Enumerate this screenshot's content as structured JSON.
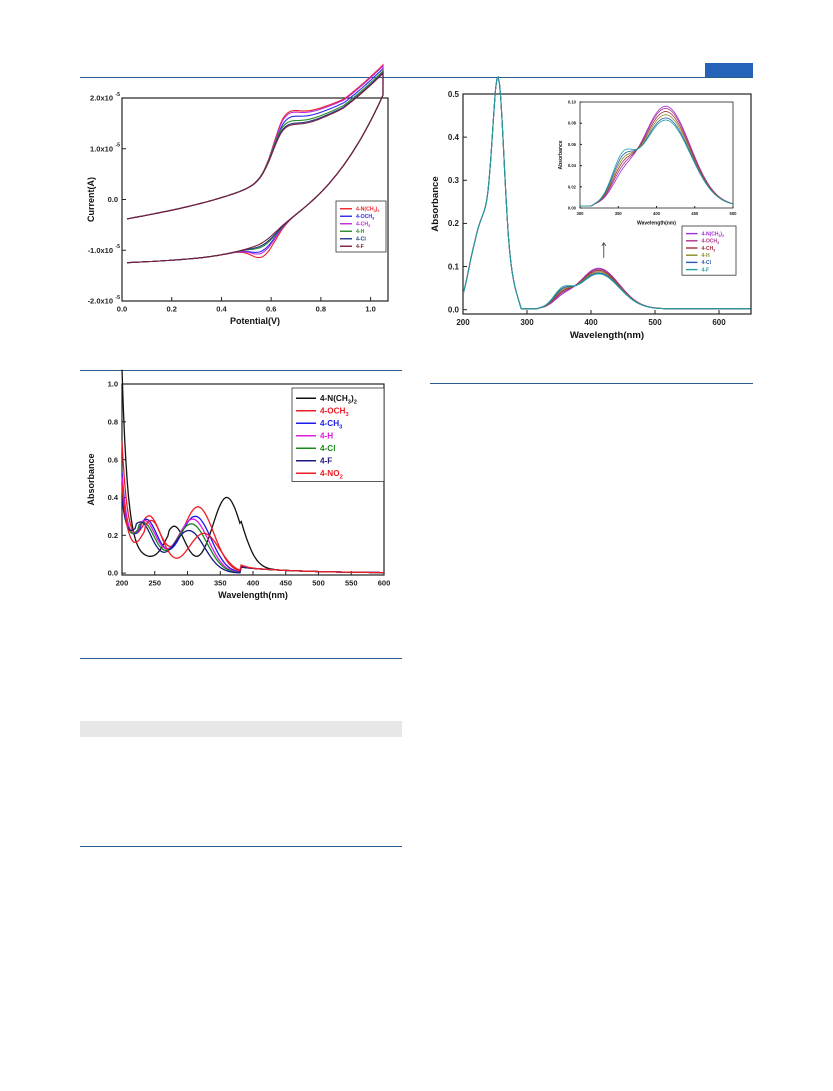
{
  "page": {
    "accent_color": "#2b5c8f",
    "tab_color": "#2563b8",
    "table_header_color": "#e7e7e7"
  },
  "chart_data": [
    {
      "id": "cv",
      "type": "line",
      "xlabel": "Potential(V)",
      "ylabel": "Current(A)",
      "xlim": [
        0.0,
        1.07
      ],
      "ylim": [
        -2e-05,
        2e-05
      ],
      "xticks": [
        0.0,
        0.2,
        0.4,
        0.6,
        0.8,
        1.0
      ],
      "xtick_labels": [
        "0.0",
        "0.2",
        "0.4",
        "0.6",
        "0.8",
        "1.0"
      ],
      "yticks": [
        -2e-05,
        -1e-05,
        0.0,
        1e-05,
        2e-05
      ],
      "ytick_labels": [
        "-2.0x10",
        "-1.0x10",
        "0.0",
        "1.0x10",
        "2.0x10"
      ],
      "ytick_exponents": [
        "-5",
        "-5",
        "",
        "-5",
        "-5"
      ],
      "legend_position": "lower-right",
      "series": [
        {
          "name": "4-N(CH3)2",
          "color": "#e8232b",
          "ipa": 1.8e-05,
          "ipc": -1.18e-05,
          "epa": 0.645,
          "epc": 0.57
        },
        {
          "name": "4-OCH3",
          "color": "#2a2af0",
          "ipa": 1.62e-05,
          "ipc": -1.06e-05,
          "epa": 0.645,
          "epc": 0.57
        },
        {
          "name": "4-CH3",
          "color": "#c02ad6",
          "ipa": 1.75e-05,
          "ipc": -1.1e-05,
          "epa": 0.645,
          "epc": 0.57
        },
        {
          "name": "4-H",
          "color": "#2a8a2a",
          "ipa": 1.5e-05,
          "ipc": -9.8e-06,
          "epa": 0.64,
          "epc": 0.575
        },
        {
          "name": "4-Cl",
          "color": "#1f3a8a",
          "ipa": 1.42e-05,
          "ipc": -9.5e-06,
          "epa": 0.64,
          "epc": 0.575
        },
        {
          "name": "4-F",
          "color": "#7a1f3a",
          "ipa": 1.38e-05,
          "ipc": -9e-06,
          "epa": 0.64,
          "epc": 0.575
        }
      ],
      "legend_labels": [
        "4-N(CH",
        ")",
        "4-OCH",
        "4-CH",
        "4-H",
        "4-Cl",
        "4-F"
      ],
      "legend_subscripts": [
        "3",
        "2",
        "3",
        "3"
      ]
    },
    {
      "id": "uv-main",
      "type": "line",
      "xlabel": "Wavelength(nm)",
      "ylabel": "Absorbance",
      "xlim": [
        200,
        650
      ],
      "ylim": [
        -0.01,
        0.5
      ],
      "xticks": [
        200,
        300,
        400,
        500,
        600
      ],
      "xtick_labels": [
        "200",
        "300",
        "400",
        "500",
        "600"
      ],
      "yticks": [
        0.0,
        0.1,
        0.2,
        0.3,
        0.4,
        0.5
      ],
      "ytick_labels": [
        "0.0",
        "0.1",
        "0.2",
        "0.3",
        "0.4",
        "0.5"
      ],
      "legend_position": "right",
      "series": [
        {
          "name": "4-N(CH3)2",
          "color": "#9b30d9",
          "peak_420": 0.094
        },
        {
          "name": "4-OCH3",
          "color": "#b0308a",
          "peak_420": 0.092
        },
        {
          "name": "4-CH3",
          "color": "#a02a3a",
          "peak_420": 0.089
        },
        {
          "name": "4-H",
          "color": "#8a8a20",
          "peak_420": 0.086
        },
        {
          "name": "4-Cl",
          "color": "#2a5ab0",
          "peak_420": 0.083
        },
        {
          "name": "4-F",
          "color": "#20a0a0",
          "peak_420": 0.081
        }
      ],
      "legend_labels": [
        "4-N(CH",
        ")",
        "4-OCH",
        "4-CH",
        "4-H",
        "4-Cl",
        "4-F"
      ],
      "legend_subscripts": [
        "3",
        "2",
        "3",
        "3"
      ]
    },
    {
      "id": "uv-inset",
      "type": "line",
      "xlabel": "Wavelength(nm)",
      "ylabel": "Absorbance",
      "xlim": [
        300,
        500
      ],
      "ylim": [
        0.0,
        0.1
      ],
      "xticks": [
        300,
        350,
        400,
        450,
        500
      ],
      "xtick_labels": [
        "300",
        "350",
        "400",
        "450",
        "500"
      ],
      "yticks": [
        0.0,
        0.02,
        0.04,
        0.06,
        0.08,
        0.1
      ],
      "ytick_labels": [
        "0.00",
        "0.02",
        "0.04",
        "0.06",
        "0.08",
        "0.10"
      ]
    },
    {
      "id": "uv-bottom",
      "type": "line",
      "xlabel": "Wavelength(nm)",
      "ylabel": "Absorbance",
      "xlim": [
        200,
        600
      ],
      "ylim": [
        -0.01,
        1.0
      ],
      "xticks": [
        200,
        250,
        300,
        350,
        400,
        450,
        500,
        550,
        600
      ],
      "xtick_labels": [
        "200",
        "250",
        "300",
        "350",
        "400",
        "450",
        "500",
        "550",
        "600"
      ],
      "yticks": [
        0.0,
        0.2,
        0.4,
        0.6,
        0.8,
        1.0
      ],
      "ytick_labels": [
        "0.0",
        "0.2",
        "0.4",
        "0.6",
        "0.8",
        "1.0"
      ],
      "legend_position": "top-right",
      "series": [
        {
          "name": "4-N(CH3)2",
          "color": "#111111",
          "peak_wl": 360,
          "peak_abs": 0.4,
          "min_wl": 290,
          "min_abs": 0.105
        },
        {
          "name": "4-OCH3",
          "color": "#ee1c24",
          "peak_wl": 316,
          "peak_abs": 0.35,
          "min_wl": 252,
          "min_abs": 0.13
        },
        {
          "name": "4-CH3",
          "color": "#1c1cee",
          "peak_wl": 312,
          "peak_abs": 0.3,
          "min_wl": 248,
          "min_abs": 0.12
        },
        {
          "name": "4-H",
          "color": "#e01ce0",
          "peak_wl": 308,
          "peak_abs": 0.285,
          "min_wl": 246,
          "min_abs": 0.115
        },
        {
          "name": "4-Cl",
          "color": "#1a8a1a",
          "peak_wl": 306,
          "peak_abs": 0.26,
          "min_wl": 244,
          "min_abs": 0.11
        },
        {
          "name": "4-F",
          "color": "#1a1a80",
          "peak_wl": 302,
          "peak_abs": 0.225,
          "min_wl": 240,
          "min_abs": 0.11
        },
        {
          "name": "4-NO2",
          "color": "#ee1c24",
          "peak_wl": 325,
          "peak_abs": 0.21,
          "min_wl": 255,
          "min_abs": 0.12
        }
      ],
      "legend_labels": [
        "4-N(CH",
        ")",
        "4-OCH",
        "4-CH",
        "4-H",
        "4-Cl",
        "4-F",
        "4-NO"
      ],
      "legend_subscripts": [
        "3",
        "2",
        "3",
        "3",
        "2"
      ]
    }
  ]
}
